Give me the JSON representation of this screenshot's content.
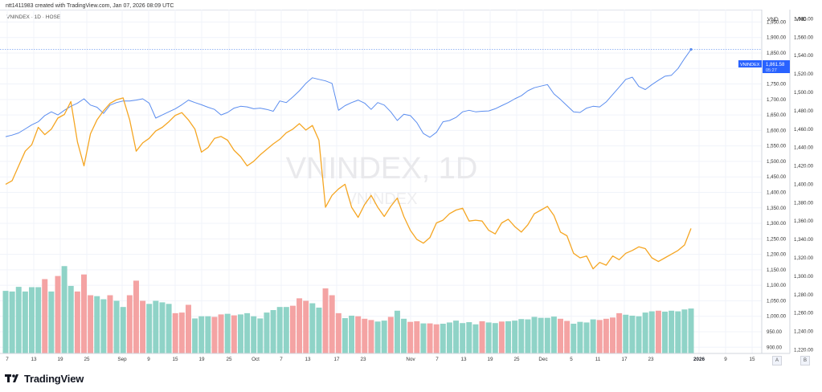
{
  "header": {
    "created_by": "ntt1411983 created with TradingView.com, Jan 07, 2026 08:09 UTC",
    "symbol_line": "VNINDEX · 1D · HOSE"
  },
  "watermark": {
    "main": "VNINDEX, 1D",
    "sub": "VNINDEX"
  },
  "brand": "TradingView",
  "colors": {
    "vnindex": "#5b8def",
    "compare": "#f5a623",
    "vol_up": "#8fd3c7",
    "vol_down": "#f4a3a3",
    "tag_bg": "#2962ff"
  },
  "price_tag": {
    "symbol": "VNINDEX",
    "value": "1,861.58",
    "timer": "05:27"
  },
  "axes": {
    "left_scale_label": "VND",
    "right_scale_label": "VND",
    "left_ticks": [
      "1,950.00",
      "1,900.00",
      "1,850.00",
      "1,800.00",
      "1,750.00",
      "1,700.00",
      "1,650.00",
      "1,600.00",
      "1,550.00",
      "1,500.00",
      "1,450.00",
      "1,400.00",
      "1,350.00",
      "1,300.00",
      "1,250.00",
      "1,200.00",
      "1,150.00",
      "1,100.00",
      "1,050.00",
      "1,000.00",
      "950.00",
      "900.00"
    ],
    "right_ticks": [
      "1,580.00",
      "1,560.00",
      "1,540.00",
      "1,520.00",
      "1,500.00",
      "1,480.00",
      "1,460.00",
      "1,440.00",
      "1,420.00",
      "1,400.00",
      "1,380.00",
      "1,360.00",
      "1,340.00",
      "1,320.00",
      "1,300.00",
      "1,280.00",
      "1,260.00",
      "1,240.00",
      "1,220.00"
    ],
    "x_ticks": [
      "7",
      "13",
      "19",
      "25",
      "Sep",
      "9",
      "15",
      "19",
      "25",
      "Oct",
      "7",
      "13",
      "17",
      "23",
      "Nov",
      "7",
      "13",
      "19",
      "25",
      "Dec",
      "5",
      "11",
      "17",
      "23",
      "2026",
      "9",
      "15"
    ],
    "corner_buttons": [
      "A",
      "B"
    ]
  },
  "chart_data": {
    "type": "line",
    "x_range": [
      "Aug 07, 2025",
      "Jan 07, 2026"
    ],
    "series": [
      {
        "name": "VNINDEX",
        "axis": "left",
        "values": [
          1580,
          1585,
          1592,
          1605,
          1618,
          1628,
          1648,
          1660,
          1650,
          1665,
          1678,
          1688,
          1702,
          1682,
          1675,
          1655,
          1682,
          1690,
          1695,
          1695,
          1698,
          1702,
          1688,
          1640,
          1650,
          1660,
          1670,
          1683,
          1698,
          1690,
          1683,
          1675,
          1668,
          1650,
          1658,
          1672,
          1678,
          1676,
          1670,
          1672,
          1668,
          1662,
          1695,
          1690,
          1708,
          1728,
          1752,
          1770,
          1765,
          1760,
          1752,
          1665,
          1680,
          1690,
          1698,
          1688,
          1668,
          1690,
          1682,
          1660,
          1632,
          1652,
          1648,
          1625,
          1590,
          1578,
          1594,
          1628,
          1632,
          1642,
          1660,
          1665,
          1660,
          1662,
          1663,
          1670,
          1680,
          1690,
          1702,
          1712,
          1728,
          1738,
          1743,
          1748,
          1718,
          1700,
          1680,
          1660,
          1658,
          1672,
          1678,
          1676,
          1692,
          1716,
          1740,
          1765,
          1772,
          1742,
          1732,
          1748,
          1762,
          1775,
          1778,
          1800,
          1832,
          1861.58
        ]
      },
      {
        "name": "Compare",
        "axis": "right",
        "values": [
          1400,
          1404,
          1420,
          1436,
          1443,
          1462,
          1454,
          1460,
          1472,
          1476,
          1490,
          1446,
          1420,
          1455,
          1470,
          1480,
          1488,
          1492,
          1494,
          1470,
          1436,
          1445,
          1450,
          1458,
          1462,
          1468,
          1475,
          1478,
          1470,
          1460,
          1435,
          1440,
          1450,
          1452,
          1448,
          1437,
          1430,
          1420,
          1425,
          1432,
          1438,
          1444,
          1449,
          1456,
          1460,
          1466,
          1459,
          1464,
          1448,
          1375,
          1388,
          1395,
          1400,
          1375,
          1364,
          1378,
          1388,
          1375,
          1365,
          1376,
          1385,
          1365,
          1350,
          1340,
          1336,
          1342,
          1358,
          1361,
          1368,
          1372,
          1374,
          1360,
          1361,
          1360,
          1350,
          1346,
          1358,
          1362,
          1354,
          1348,
          1356,
          1368,
          1372,
          1376,
          1366,
          1348,
          1344,
          1325,
          1320,
          1322,
          1308,
          1315,
          1312,
          1322,
          1318,
          1325,
          1328,
          1332,
          1330,
          1320,
          1316,
          1320,
          1324,
          1328,
          1334,
          1352
        ]
      }
    ],
    "volume": {
      "values": [
        1082,
        1080,
        1095,
        1080,
        1094,
        1094,
        1120,
        1080,
        1130,
        1162,
        1098,
        1080,
        1135,
        1068,
        1065,
        1055,
        1068,
        1050,
        1030,
        1068,
        1115,
        1050,
        1040,
        1050,
        1045,
        1040,
        1010,
        1012,
        1037,
        993,
        1000,
        1000,
        998,
        1006,
        1008,
        1003,
        1006,
        1010,
        1000,
        993,
        1012,
        1020,
        1030,
        1030,
        1034,
        1058,
        1050,
        1042,
        1028,
        1090,
        1068,
        1010,
        994,
        1002,
        1000,
        992,
        988,
        983,
        986,
        998,
        1018,
        992,
        982,
        984,
        977,
        977,
        974,
        976,
        980,
        986,
        978,
        981,
        974,
        984,
        980,
        978,
        983,
        984,
        986,
        991,
        990,
        998,
        995,
        995,
        999,
        992,
        985,
        976,
        982,
        980,
        990,
        988,
        992,
        996,
        1010,
        1005,
        1002,
        1000,
        1012,
        1016,
        1018,
        1015,
        1018,
        1016,
        1022,
        1025
      ],
      "up": [
        1,
        1,
        1,
        1,
        1,
        1,
        0,
        1,
        0,
        1,
        1,
        0,
        0,
        0,
        1,
        1,
        0,
        1,
        1,
        0,
        0,
        0,
        1,
        1,
        1,
        1,
        0,
        0,
        0,
        1,
        1,
        1,
        0,
        0,
        1,
        0,
        1,
        1,
        1,
        1,
        1,
        1,
        1,
        1,
        0,
        0,
        0,
        1,
        1,
        0,
        0,
        0,
        1,
        1,
        0,
        0,
        0,
        1,
        1,
        0,
        1,
        1,
        0,
        0,
        1,
        0,
        0,
        1,
        1,
        1,
        1,
        1,
        1,
        0,
        1,
        1,
        0,
        1,
        1,
        1,
        1,
        1,
        1,
        1,
        1,
        0,
        0,
        1,
        1,
        1,
        1,
        0,
        0,
        0,
        0,
        1,
        1,
        1,
        1,
        1,
        0,
        1,
        1,
        1,
        1,
        1
      ]
    },
    "ylim_left": [
      880,
      1990
    ],
    "ylim_right": [
      1216,
      1590
    ],
    "grid": true,
    "legend": "none"
  }
}
